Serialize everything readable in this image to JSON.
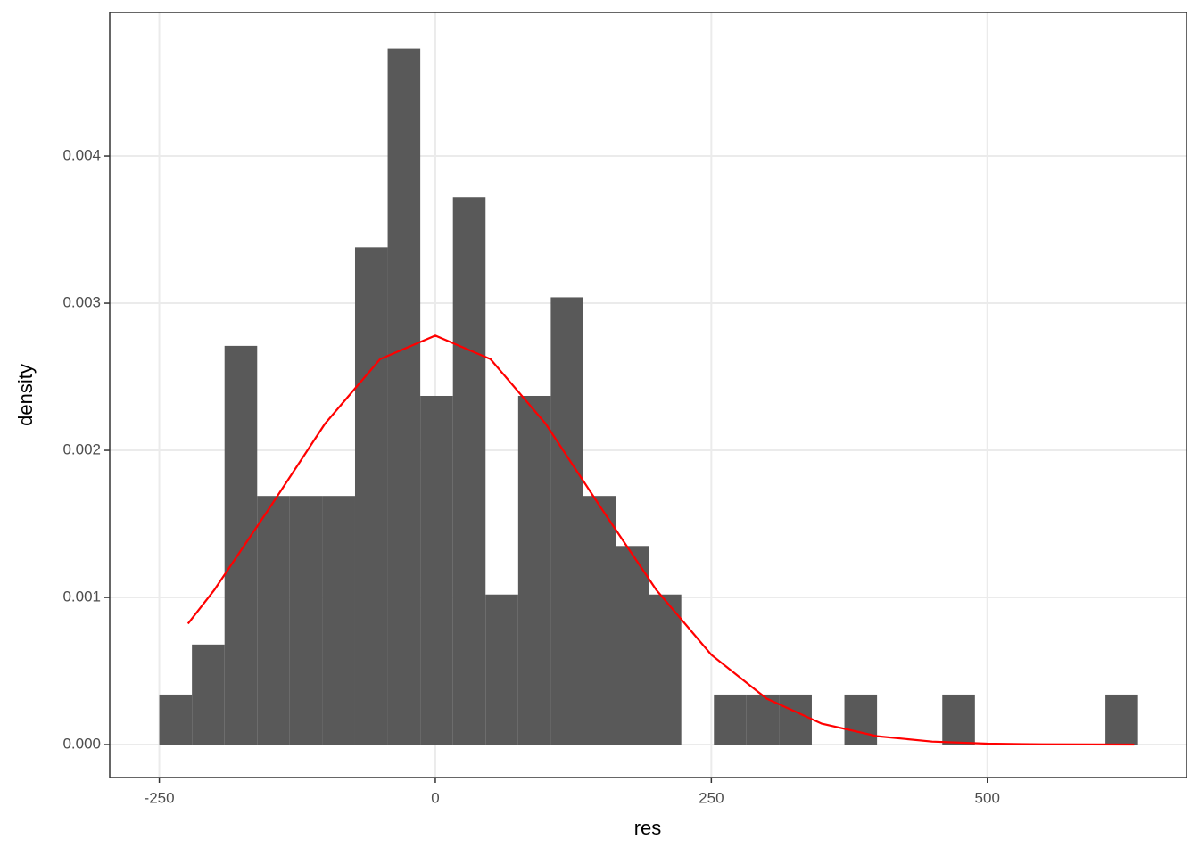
{
  "chart_data": {
    "type": "histogram",
    "x_label": "res",
    "y_label": "density",
    "bins": [
      -250,
      -220.45,
      -190.9,
      -161.35,
      -131.8,
      -102.25,
      -72.7,
      -43.15,
      -13.6,
      15.95,
      45.5,
      75.05,
      104.6,
      134.15,
      163.7,
      193.25,
      222.8,
      252.35,
      281.9,
      311.45,
      341,
      370.55,
      400.1,
      429.65,
      459.2,
      488.75,
      518.3,
      547.85,
      577.4,
      606.95,
      636.5
    ],
    "values": [
      0.00034,
      0.00068,
      0.00271,
      0.00169,
      0.00169,
      0.00169,
      0.00338,
      0.00473,
      0.00237,
      0.00372,
      0.00102,
      0.00237,
      0.00304,
      0.00169,
      0.00135,
      0.00102,
      0,
      0.00034,
      0.00034,
      0.00034,
      0,
      0.00034,
      0,
      0,
      0.00034,
      0,
      0,
      0,
      0,
      0.00034
    ],
    "color": "#595959",
    "curve": {
      "color": "#ff0000",
      "x": [
        -224,
        -200,
        -150,
        -100,
        -50,
        0,
        50,
        100,
        150,
        200,
        250,
        300,
        350,
        400,
        450,
        500,
        550,
        633
      ],
      "y": [
        0.000822,
        0.001053,
        0.00161,
        0.00218,
        0.00262,
        0.00278,
        0.00262,
        0.00218,
        0.00161,
        0.001053,
        0.00061,
        0.000313,
        0.000142,
        5.71e-05,
        2.04e-05,
        6.4e-06,
        1.8e-06,
        1e-07
      ]
    },
    "xlim": [
      -294.9,
      680.4
    ],
    "ylim": [
      -0.000224,
      0.004976
    ],
    "xticks": [
      -250,
      0,
      250,
      500
    ],
    "yticks": [
      {
        "value": 0,
        "label": "0.000"
      },
      0.001,
      0.002,
      0.003,
      0.004
    ],
    "grid": true
  }
}
